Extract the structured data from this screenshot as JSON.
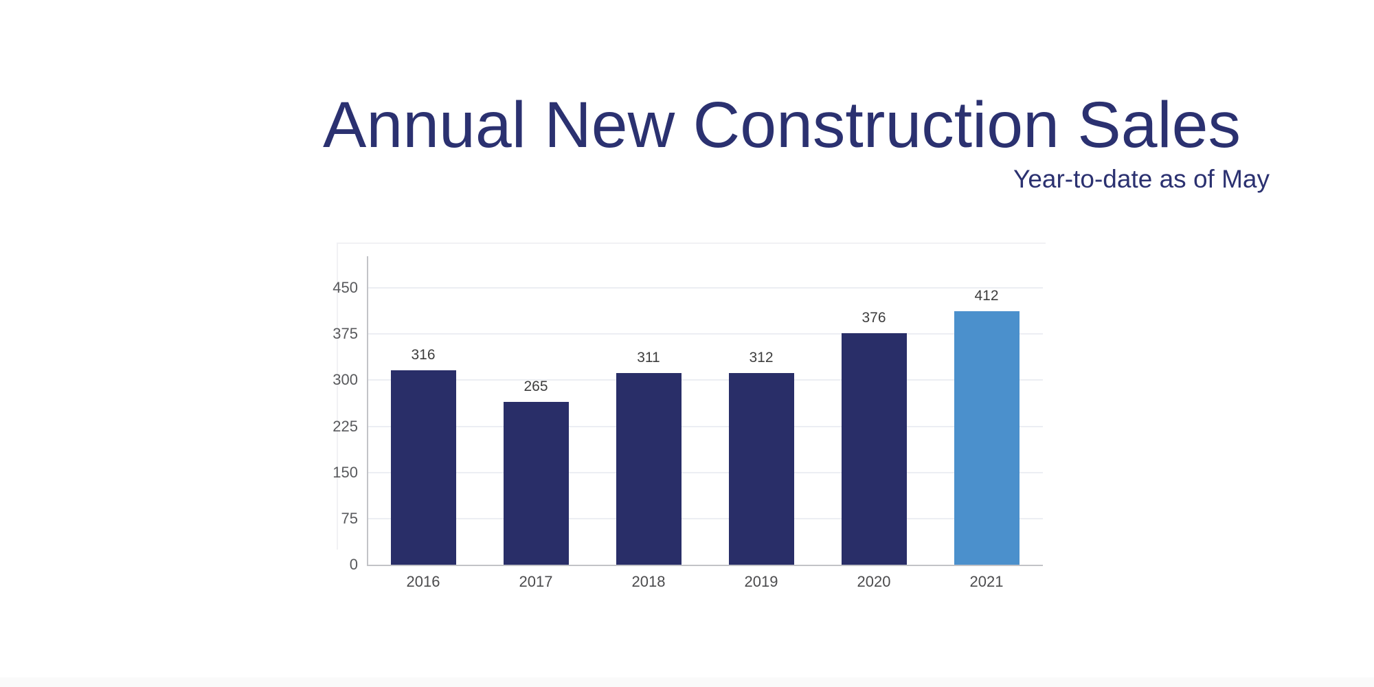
{
  "header": {
    "title": "Annual New Construction Sales",
    "subtitle": "Year-to-date as of May",
    "text_color": "#2b3170"
  },
  "chart_data": {
    "type": "bar",
    "title": "Annual New Construction Sales",
    "subtitle": "Year-to-date as of May",
    "categories": [
      "2016",
      "2017",
      "2018",
      "2019",
      "2020",
      "2021"
    ],
    "values": [
      316,
      265,
      311,
      312,
      376,
      412
    ],
    "data_labels": [
      "316",
      "265",
      "311",
      "312",
      "376",
      "412"
    ],
    "highlight_category": "2021",
    "xlabel": "",
    "ylabel": "",
    "ylim": [
      0,
      450
    ],
    "yticks": [
      0,
      75,
      150,
      225,
      300,
      375,
      450
    ],
    "grid": true,
    "legend": false,
    "colors": {
      "bar": "#292e68",
      "highlight_bar": "#4b90cc",
      "gridline": "#eceef3",
      "axis": "#c2c3c7",
      "data_label": "#3d3d3d",
      "ytick_label": "#58595c",
      "xtick_label": "#4b4b4d"
    }
  }
}
